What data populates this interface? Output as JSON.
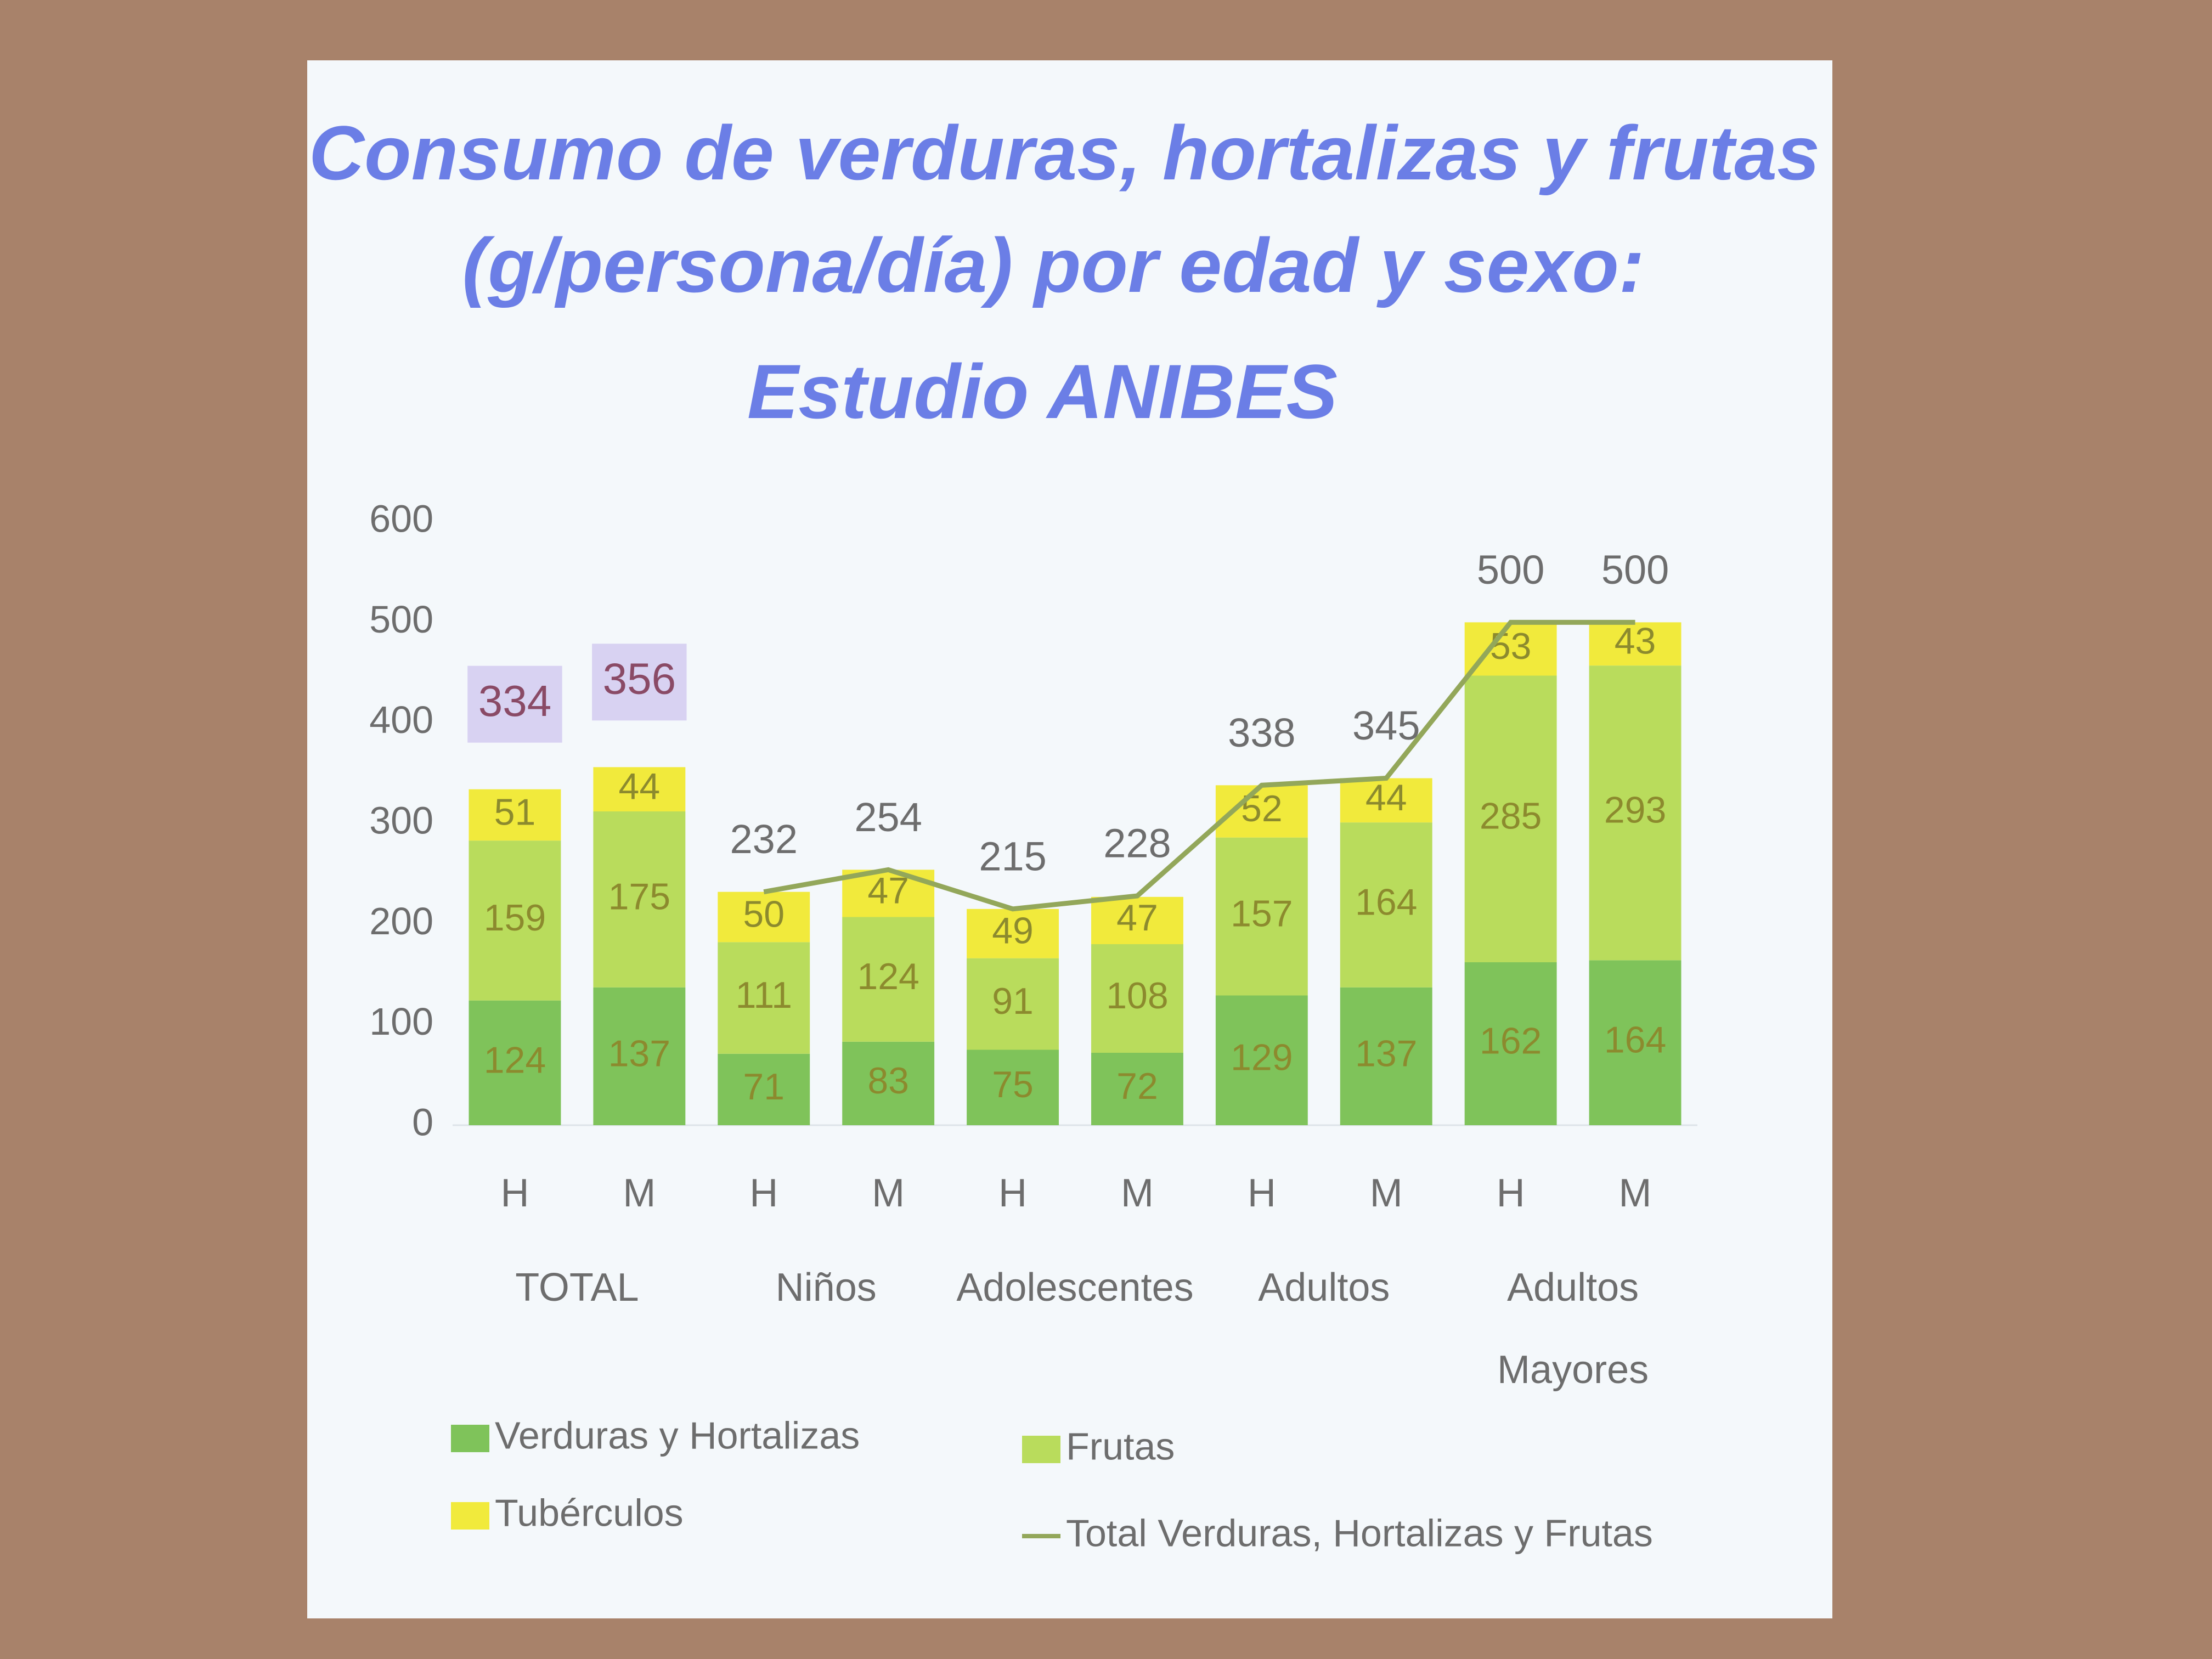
{
  "chart_data": {
    "type": "bar",
    "stacked": true,
    "title": [
      "Consumo de verduras, hortalizas y frutas",
      "(g/persona/día) por edad y sexo:",
      "Estudio ANIBES"
    ],
    "categories": [
      "H",
      "M",
      "H",
      "M",
      "H",
      "M",
      "H",
      "M",
      "H",
      "M"
    ],
    "groups": [
      "TOTAL",
      "Niños",
      "Adolescentes",
      "Adultos",
      [
        "Adultos",
        "Mayores"
      ]
    ],
    "series": [
      {
        "name": "Verduras y Hortalizas",
        "color": "#7fc35a",
        "values": [
          124,
          137,
          71,
          83,
          75,
          72,
          129,
          137,
          162,
          164
        ]
      },
      {
        "name": "Frutas",
        "color": "#b9dc5c",
        "values": [
          159,
          175,
          111,
          124,
          91,
          108,
          157,
          164,
          285,
          293
        ]
      },
      {
        "name": "Tubérculos",
        "color": "#f1ea3c",
        "values": [
          51,
          44,
          50,
          47,
          49,
          47,
          52,
          44,
          53,
          43
        ]
      },
      {
        "name": "Total Verduras, Hortalizas y Frutas",
        "type": "line",
        "color": "#93a75a",
        "values": [
          null,
          null,
          232,
          254,
          215,
          228,
          338,
          345,
          500,
          500
        ]
      }
    ],
    "highlighted_totals": [
      334,
      356
    ],
    "ylim": [
      0,
      600
    ],
    "yticks": [
      0,
      100,
      200,
      300,
      400,
      500,
      600
    ],
    "grid": false
  }
}
